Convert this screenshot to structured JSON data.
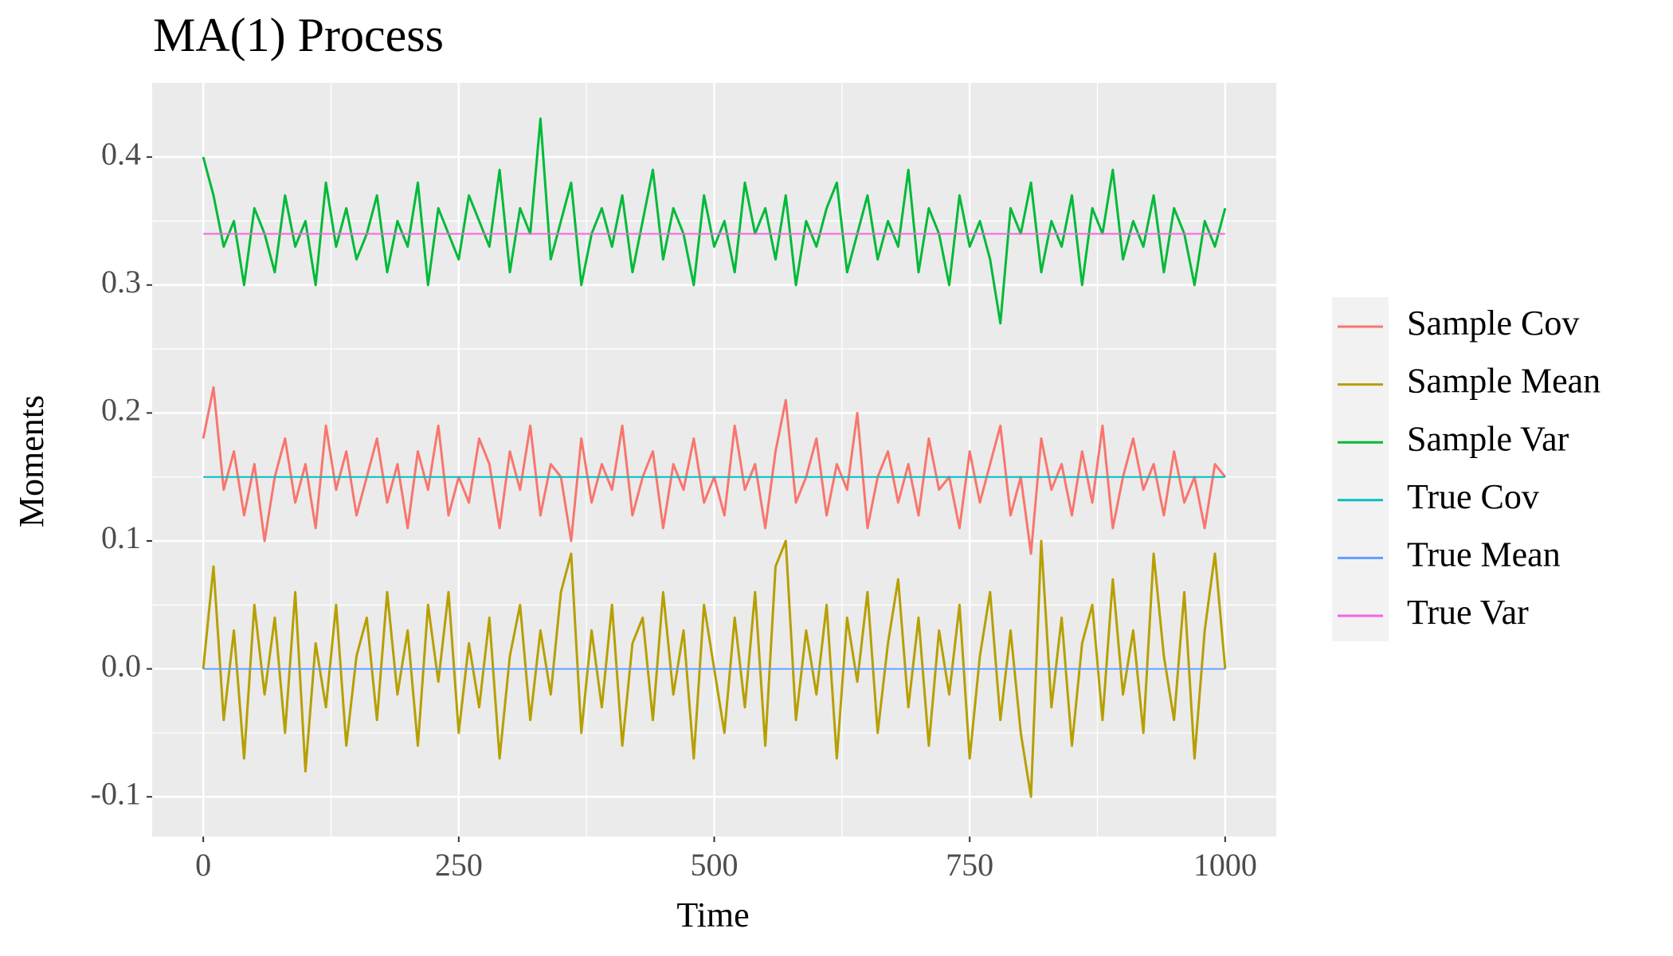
{
  "chart_data": {
    "type": "line",
    "title": "MA(1) Process",
    "x_label": "Time",
    "y_label": "Moments",
    "xlim": [
      -50,
      1050
    ],
    "ylim": [
      -0.131,
      0.458
    ],
    "xticks": [
      0,
      250,
      500,
      750,
      1000
    ],
    "yticks": [
      {
        "value": -0.1,
        "label": "-0.1"
      },
      {
        "value": 0,
        "label": "0.0"
      },
      0.1,
      0.2,
      0.3,
      0.4
    ],
    "xminor": [
      125,
      375,
      625,
      875
    ],
    "yminor": [
      -0.05,
      0.05,
      0.15,
      0.25,
      0.35
    ],
    "grid": true,
    "legend": "right",
    "x": [
      0,
      10,
      20,
      30,
      40,
      50,
      60,
      70,
      80,
      90,
      100,
      110,
      120,
      130,
      140,
      150,
      160,
      170,
      180,
      190,
      200,
      210,
      220,
      230,
      240,
      250,
      260,
      270,
      280,
      290,
      300,
      310,
      320,
      330,
      340,
      350,
      360,
      370,
      380,
      390,
      400,
      410,
      420,
      430,
      440,
      450,
      460,
      470,
      480,
      490,
      500,
      510,
      520,
      530,
      540,
      550,
      560,
      570,
      580,
      590,
      600,
      610,
      620,
      630,
      640,
      650,
      660,
      670,
      680,
      690,
      700,
      710,
      720,
      730,
      740,
      750,
      760,
      770,
      780,
      790,
      800,
      810,
      820,
      830,
      840,
      850,
      860,
      870,
      880,
      890,
      900,
      910,
      920,
      930,
      940,
      950,
      960,
      970,
      980,
      990,
      1000
    ],
    "series": [
      {
        "name": "Sample Cov",
        "color": "#F8766D",
        "values": [
          0.18,
          0.22,
          0.14,
          0.17,
          0.12,
          0.16,
          0.1,
          0.15,
          0.18,
          0.13,
          0.16,
          0.11,
          0.19,
          0.14,
          0.17,
          0.12,
          0.15,
          0.18,
          0.13,
          0.16,
          0.11,
          0.17,
          0.14,
          0.19,
          0.12,
          0.15,
          0.13,
          0.18,
          0.16,
          0.11,
          0.17,
          0.14,
          0.19,
          0.12,
          0.16,
          0.15,
          0.1,
          0.18,
          0.13,
          0.16,
          0.14,
          0.19,
          0.12,
          0.15,
          0.17,
          0.11,
          0.16,
          0.14,
          0.18,
          0.13,
          0.15,
          0.12,
          0.19,
          0.14,
          0.16,
          0.11,
          0.17,
          0.21,
          0.13,
          0.15,
          0.18,
          0.12,
          0.16,
          0.14,
          0.2,
          0.11,
          0.15,
          0.17,
          0.13,
          0.16,
          0.12,
          0.18,
          0.14,
          0.15,
          0.11,
          0.17,
          0.13,
          0.16,
          0.19,
          0.12,
          0.15,
          0.09,
          0.18,
          0.14,
          0.16,
          0.12,
          0.17,
          0.13,
          0.19,
          0.11,
          0.15,
          0.18,
          0.14,
          0.16,
          0.12,
          0.17,
          0.13,
          0.15,
          0.11,
          0.16,
          0.15
        ]
      },
      {
        "name": "Sample Mean",
        "color": "#B79F00",
        "values": [
          0.0,
          0.08,
          -0.04,
          0.03,
          -0.07,
          0.05,
          -0.02,
          0.04,
          -0.05,
          0.06,
          -0.08,
          0.02,
          -0.03,
          0.05,
          -0.06,
          0.01,
          0.04,
          -0.04,
          0.06,
          -0.02,
          0.03,
          -0.06,
          0.05,
          -0.01,
          0.06,
          -0.05,
          0.02,
          -0.03,
          0.04,
          -0.07,
          0.01,
          0.05,
          -0.04,
          0.03,
          -0.02,
          0.06,
          0.09,
          -0.05,
          0.03,
          -0.03,
          0.05,
          -0.06,
          0.02,
          0.04,
          -0.04,
          0.06,
          -0.02,
          0.03,
          -0.07,
          0.05,
          0.0,
          -0.05,
          0.04,
          -0.03,
          0.06,
          -0.06,
          0.08,
          0.1,
          -0.04,
          0.03,
          -0.02,
          0.05,
          -0.07,
          0.04,
          -0.01,
          0.06,
          -0.05,
          0.02,
          0.07,
          -0.03,
          0.04,
          -0.06,
          0.03,
          -0.02,
          0.05,
          -0.07,
          0.01,
          0.06,
          -0.04,
          0.03,
          -0.05,
          -0.1,
          0.1,
          -0.03,
          0.04,
          -0.06,
          0.02,
          0.05,
          -0.04,
          0.07,
          -0.02,
          0.03,
          -0.05,
          0.09,
          0.01,
          -0.04,
          0.06,
          -0.07,
          0.03,
          0.09,
          0.0
        ]
      },
      {
        "name": "Sample Var",
        "color": "#00BA38",
        "values": [
          0.4,
          0.37,
          0.33,
          0.35,
          0.3,
          0.36,
          0.34,
          0.31,
          0.37,
          0.33,
          0.35,
          0.3,
          0.38,
          0.33,
          0.36,
          0.32,
          0.34,
          0.37,
          0.31,
          0.35,
          0.33,
          0.38,
          0.3,
          0.36,
          0.34,
          0.32,
          0.37,
          0.35,
          0.33,
          0.39,
          0.31,
          0.36,
          0.34,
          0.43,
          0.32,
          0.35,
          0.38,
          0.3,
          0.34,
          0.36,
          0.33,
          0.37,
          0.31,
          0.35,
          0.39,
          0.32,
          0.36,
          0.34,
          0.3,
          0.37,
          0.33,
          0.35,
          0.31,
          0.38,
          0.34,
          0.36,
          0.32,
          0.37,
          0.3,
          0.35,
          0.33,
          0.36,
          0.38,
          0.31,
          0.34,
          0.37,
          0.32,
          0.35,
          0.33,
          0.39,
          0.31,
          0.36,
          0.34,
          0.3,
          0.37,
          0.33,
          0.35,
          0.32,
          0.27,
          0.36,
          0.34,
          0.38,
          0.31,
          0.35,
          0.33,
          0.37,
          0.3,
          0.36,
          0.34,
          0.39,
          0.32,
          0.35,
          0.33,
          0.37,
          0.31,
          0.36,
          0.34,
          0.3,
          0.35,
          0.33,
          0.36
        ]
      },
      {
        "name": "True Cov",
        "color": "#00BFC4",
        "x": [
          0,
          1000
        ],
        "values": [
          0.15,
          0.15
        ]
      },
      {
        "name": "True Mean",
        "color": "#619CFF",
        "x": [
          0,
          1000
        ],
        "values": [
          0,
          0
        ]
      },
      {
        "name": "True Var",
        "color": "#F564E3",
        "x": [
          0,
          1000
        ],
        "values": [
          0.34,
          0.34
        ]
      }
    ]
  }
}
